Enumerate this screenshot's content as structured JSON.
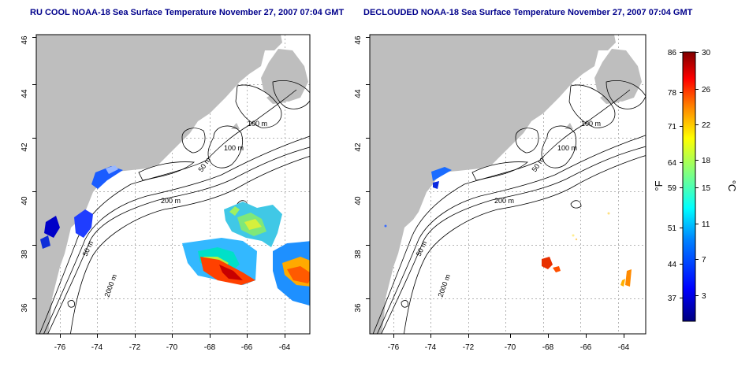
{
  "left_panel": {
    "title": "RU COOL NOAA-18 Sea Surface Temperature November 27, 2007 07:04 GMT",
    "x_ticks": [
      "-76",
      "-74",
      "-72",
      "-70",
      "-68",
      "-66",
      "-64"
    ],
    "y_ticks": [
      "36",
      "38",
      "40",
      "42",
      "44",
      "46"
    ],
    "contour_labels": [
      "100 m",
      "100 m",
      "50 m",
      "200 m",
      "50 m",
      "2000 m"
    ]
  },
  "right_panel": {
    "title": "DECLOUDED NOAA-18 Sea Surface Temperature November 27, 2007 07:04 GMT",
    "x_ticks": [
      "-76",
      "-74",
      "-72",
      "-70",
      "-68",
      "-66",
      "-64"
    ],
    "y_ticks": [
      "36",
      "38",
      "40",
      "42",
      "44",
      "46"
    ],
    "contour_labels": [
      "100 m",
      "100 m",
      "50 m",
      "200 m",
      "50 m",
      "2000 m"
    ]
  },
  "colorbar": {
    "fahrenheit_label": "°F",
    "celsius_label": "°C",
    "fahrenheit_ticks": [
      "86",
      "78",
      "71",
      "64",
      "59",
      "51",
      "44",
      "37"
    ],
    "celsius_ticks": [
      "30",
      "26",
      "22",
      "18",
      "15",
      "11",
      "7",
      "3"
    ],
    "colors": [
      "#00007f",
      "#0000ff",
      "#0080ff",
      "#00ffff",
      "#80ff80",
      "#ffff00",
      "#ff8000",
      "#ff0000",
      "#7f0000"
    ]
  },
  "colors": {
    "land": "#bebebe",
    "title": "#00008b",
    "contour": "#000000",
    "grid": "#b4b4b4"
  }
}
